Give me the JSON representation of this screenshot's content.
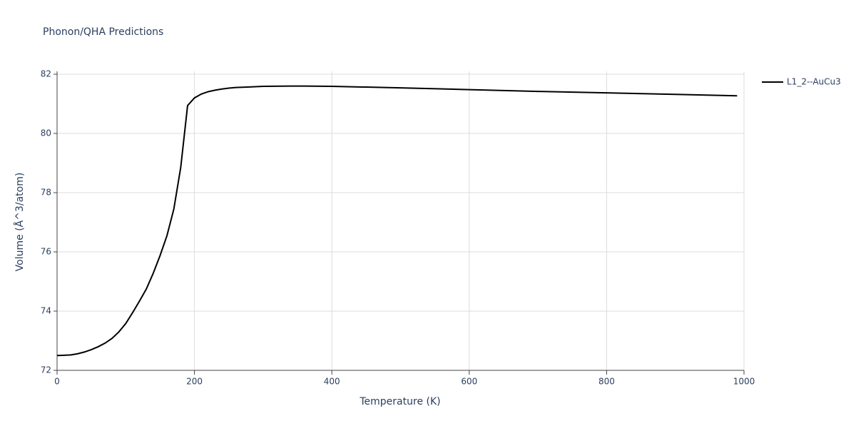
{
  "chart_data": {
    "type": "line",
    "title": "Phonon/QHA Predictions",
    "x_label": "Temperature (K)",
    "y_label": "Volume (Å^3/atom)",
    "x": [
      0,
      10,
      20,
      30,
      40,
      50,
      60,
      70,
      80,
      90,
      100,
      110,
      120,
      130,
      140,
      150,
      160,
      170,
      180,
      190,
      200,
      210,
      220,
      230,
      240,
      250,
      260,
      280,
      300,
      340,
      360,
      400,
      500,
      600,
      700,
      800,
      900,
      990
    ],
    "series": [
      {
        "name": "L1_2--AuCu3",
        "color": "#000000",
        "values": [
          72.5,
          72.51,
          72.52,
          72.56,
          72.62,
          72.7,
          72.8,
          72.92,
          73.08,
          73.3,
          73.58,
          73.95,
          74.34,
          74.75,
          75.28,
          75.88,
          76.55,
          77.45,
          78.85,
          80.94,
          81.2,
          81.33,
          81.41,
          81.46,
          81.5,
          81.53,
          81.55,
          81.57,
          81.59,
          81.6,
          81.6,
          81.59,
          81.54,
          81.48,
          81.42,
          81.37,
          81.32,
          81.27
        ]
      }
    ],
    "xlim": [
      0,
      1000
    ],
    "xticks": [
      0,
      200,
      400,
      600,
      800,
      1000
    ],
    "ylim": [
      72,
      82
    ],
    "yticks": [
      72,
      74,
      76,
      78,
      80,
      82
    ],
    "grid": true,
    "legend": "right"
  }
}
